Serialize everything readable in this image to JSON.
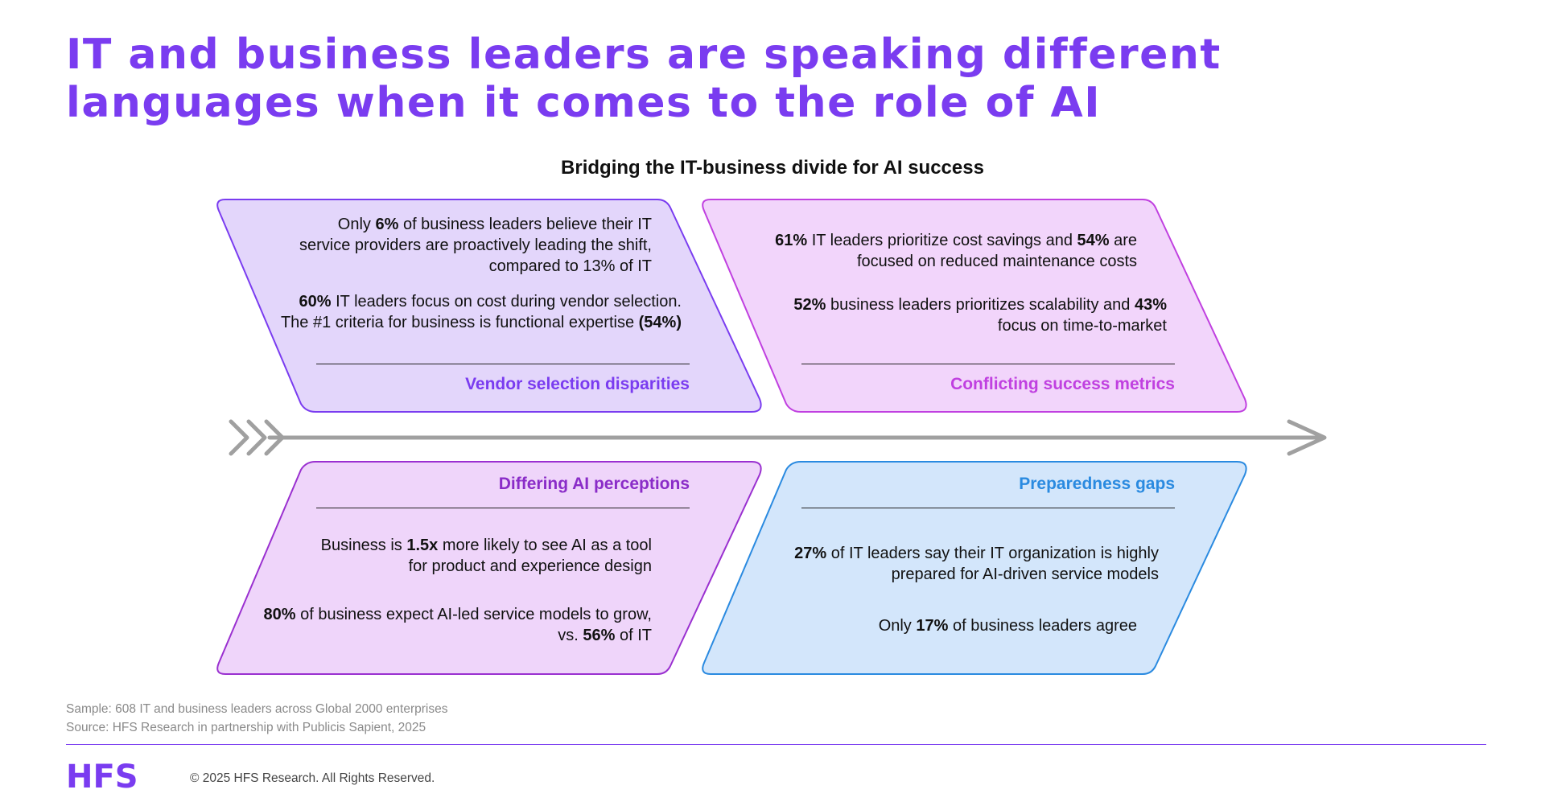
{
  "title": {
    "line1": "IT and business leaders are speaking different",
    "line2": "languages when it comes to the role of AI"
  },
  "subtitle": "Bridging the IT-business divide for AI success",
  "colors": {
    "accent": "#7a3cf0",
    "vendor_fill": "#e3d6fb",
    "vendor_stroke": "#7a3cf0",
    "metrics_fill": "#f2d5fb",
    "metrics_stroke": "#c040e0",
    "perception_fill": "#efd5fa",
    "perception_stroke": "#9a30d0",
    "prepared_fill": "#d3e6fb",
    "prepared_stroke": "#2a8ae0",
    "arrow": "#a0a0a0"
  },
  "boxes": {
    "vendor": {
      "label": "Vendor selection disparities",
      "p1": {
        "a": "Only ",
        "b": "6%",
        "c": " of business leaders believe their IT service providers are proactively leading the shift, compared to 13% of IT"
      },
      "p2": {
        "b": "60%",
        "c": " IT leaders focus on cost during vendor selection. The #1 criteria for business is functional expertise ",
        "b2": "(54%)"
      }
    },
    "metrics": {
      "label": "Conflicting success metrics",
      "p1": {
        "b": "61%",
        "c": " IT leaders prioritize cost savings and ",
        "b2": "54%",
        "d": " are focused on reduced maintenance costs"
      },
      "p2": {
        "b": "52%",
        "c": " business leaders prioritizes scalability and ",
        "b2": "43%",
        "d": " focus on time-to-market"
      }
    },
    "perception": {
      "label": "Differing AI perceptions",
      "p1": {
        "a": "Business is ",
        "b": "1.5x",
        "c": " more likely to see AI as a tool for product and experience design"
      },
      "p2": {
        "b": "80%",
        "c": " of business expect AI-led service models to grow, vs. ",
        "b2": "56%",
        "d": " of IT"
      }
    },
    "prepared": {
      "label": "Preparedness gaps",
      "p1": {
        "b": "27%",
        "c": " of IT leaders say their IT organization is highly prepared for AI-driven service models"
      },
      "p2": {
        "a": "Only ",
        "b": "17%",
        "c": " of business leaders agree"
      }
    }
  },
  "footer": {
    "sample": "Sample: 608 IT and business leaders across Global 2000 enterprises",
    "source": "Source: HFS Research in partnership with Publicis Sapient, 2025",
    "logo": "HFS",
    "copyright": "© 2025 HFS Research. All Rights Reserved."
  }
}
